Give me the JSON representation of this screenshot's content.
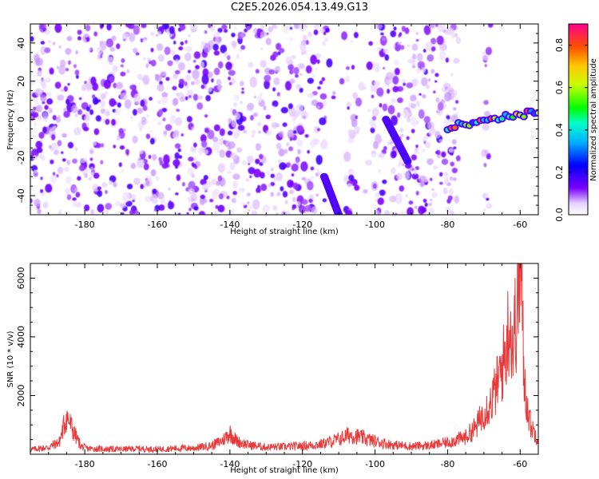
{
  "title": "C2E5.2026.054.13.49.G13",
  "colors": {
    "snr_line": "#e83a3a",
    "frame": "#000000",
    "dot_base": "#8a2be2"
  },
  "chart_data": [
    {
      "type": "heatmap",
      "title": "C2E5.2026.054.13.49.G13",
      "xlabel": "Height of straight line (km)",
      "ylabel": "Frequency (Hz)",
      "xlim": [
        -195,
        -55
      ],
      "ylim": [
        -50,
        50
      ],
      "xticks": [
        -180,
        -160,
        -140,
        -120,
        -100,
        -80,
        -60
      ],
      "xtick_labels": [
        "-180",
        "-160",
        "-140",
        "-120",
        "-100",
        "-80",
        "-60"
      ],
      "yticks": [
        -40,
        -20,
        0,
        20,
        40
      ],
      "ytick_labels": [
        "-40",
        "-20",
        "0",
        "20",
        "40"
      ],
      "colorbar": {
        "label": "Normalized spectral amplitude",
        "range": [
          0,
          0.9
        ],
        "ticks": [
          0.0,
          0.2,
          0.4,
          0.6,
          0.8
        ],
        "tick_labels": [
          "0.0",
          "0.2",
          "0.4",
          "0.6",
          "0.8"
        ]
      },
      "features": [
        {
          "name": "streak-1",
          "x": [
            -114,
            -110
          ],
          "y": [
            -30,
            -50
          ],
          "amplitude": 0.35
        },
        {
          "name": "streak-2",
          "x": [
            -97,
            -91
          ],
          "y": [
            0,
            -22
          ],
          "amplitude": 0.25
        },
        {
          "name": "tone-band",
          "x": [
            -80,
            -55
          ],
          "y": [
            -4,
            4
          ],
          "amplitude": 0.7
        }
      ]
    },
    {
      "type": "line",
      "xlabel": "Height of straight line (km)",
      "ylabel": "SNR (10 * v/v)",
      "xlim": [
        -195,
        -55
      ],
      "ylim": [
        0,
        6500
      ],
      "xticks": [
        -180,
        -160,
        -140,
        -120,
        -100,
        -80,
        -60
      ],
      "xtick_labels": [
        "-180",
        "-160",
        "-140",
        "-120",
        "-100",
        "-80",
        "-60"
      ],
      "yticks": [
        2000,
        4000,
        6000
      ],
      "ytick_labels": [
        "2000",
        "4000",
        "6000"
      ],
      "series": [
        {
          "name": "SNR",
          "x": [
            -195,
            -190,
            -187,
            -185,
            -183,
            -181,
            -179,
            -175,
            -170,
            -165,
            -160,
            -155,
            -150,
            -145,
            -142,
            -140,
            -138,
            -135,
            -130,
            -125,
            -120,
            -115,
            -110,
            -107,
            -104,
            -100,
            -95,
            -90,
            -85,
            -80,
            -75,
            -72,
            -70,
            -68,
            -66,
            -64,
            -63,
            -62,
            -61,
            -60,
            -59.5,
            -59,
            -58,
            -57,
            -56,
            -55
          ],
          "values": [
            150,
            220,
            400,
            1250,
            700,
            250,
            180,
            170,
            160,
            180,
            160,
            190,
            200,
            280,
            450,
            700,
            420,
            300,
            230,
            240,
            270,
            320,
            480,
            640,
            550,
            420,
            300,
            260,
            280,
            380,
            560,
            900,
            1400,
            1700,
            2400,
            3300,
            4400,
            3600,
            4600,
            6300,
            5200,
            2600,
            1500,
            900,
            700,
            500
          ]
        }
      ]
    }
  ]
}
